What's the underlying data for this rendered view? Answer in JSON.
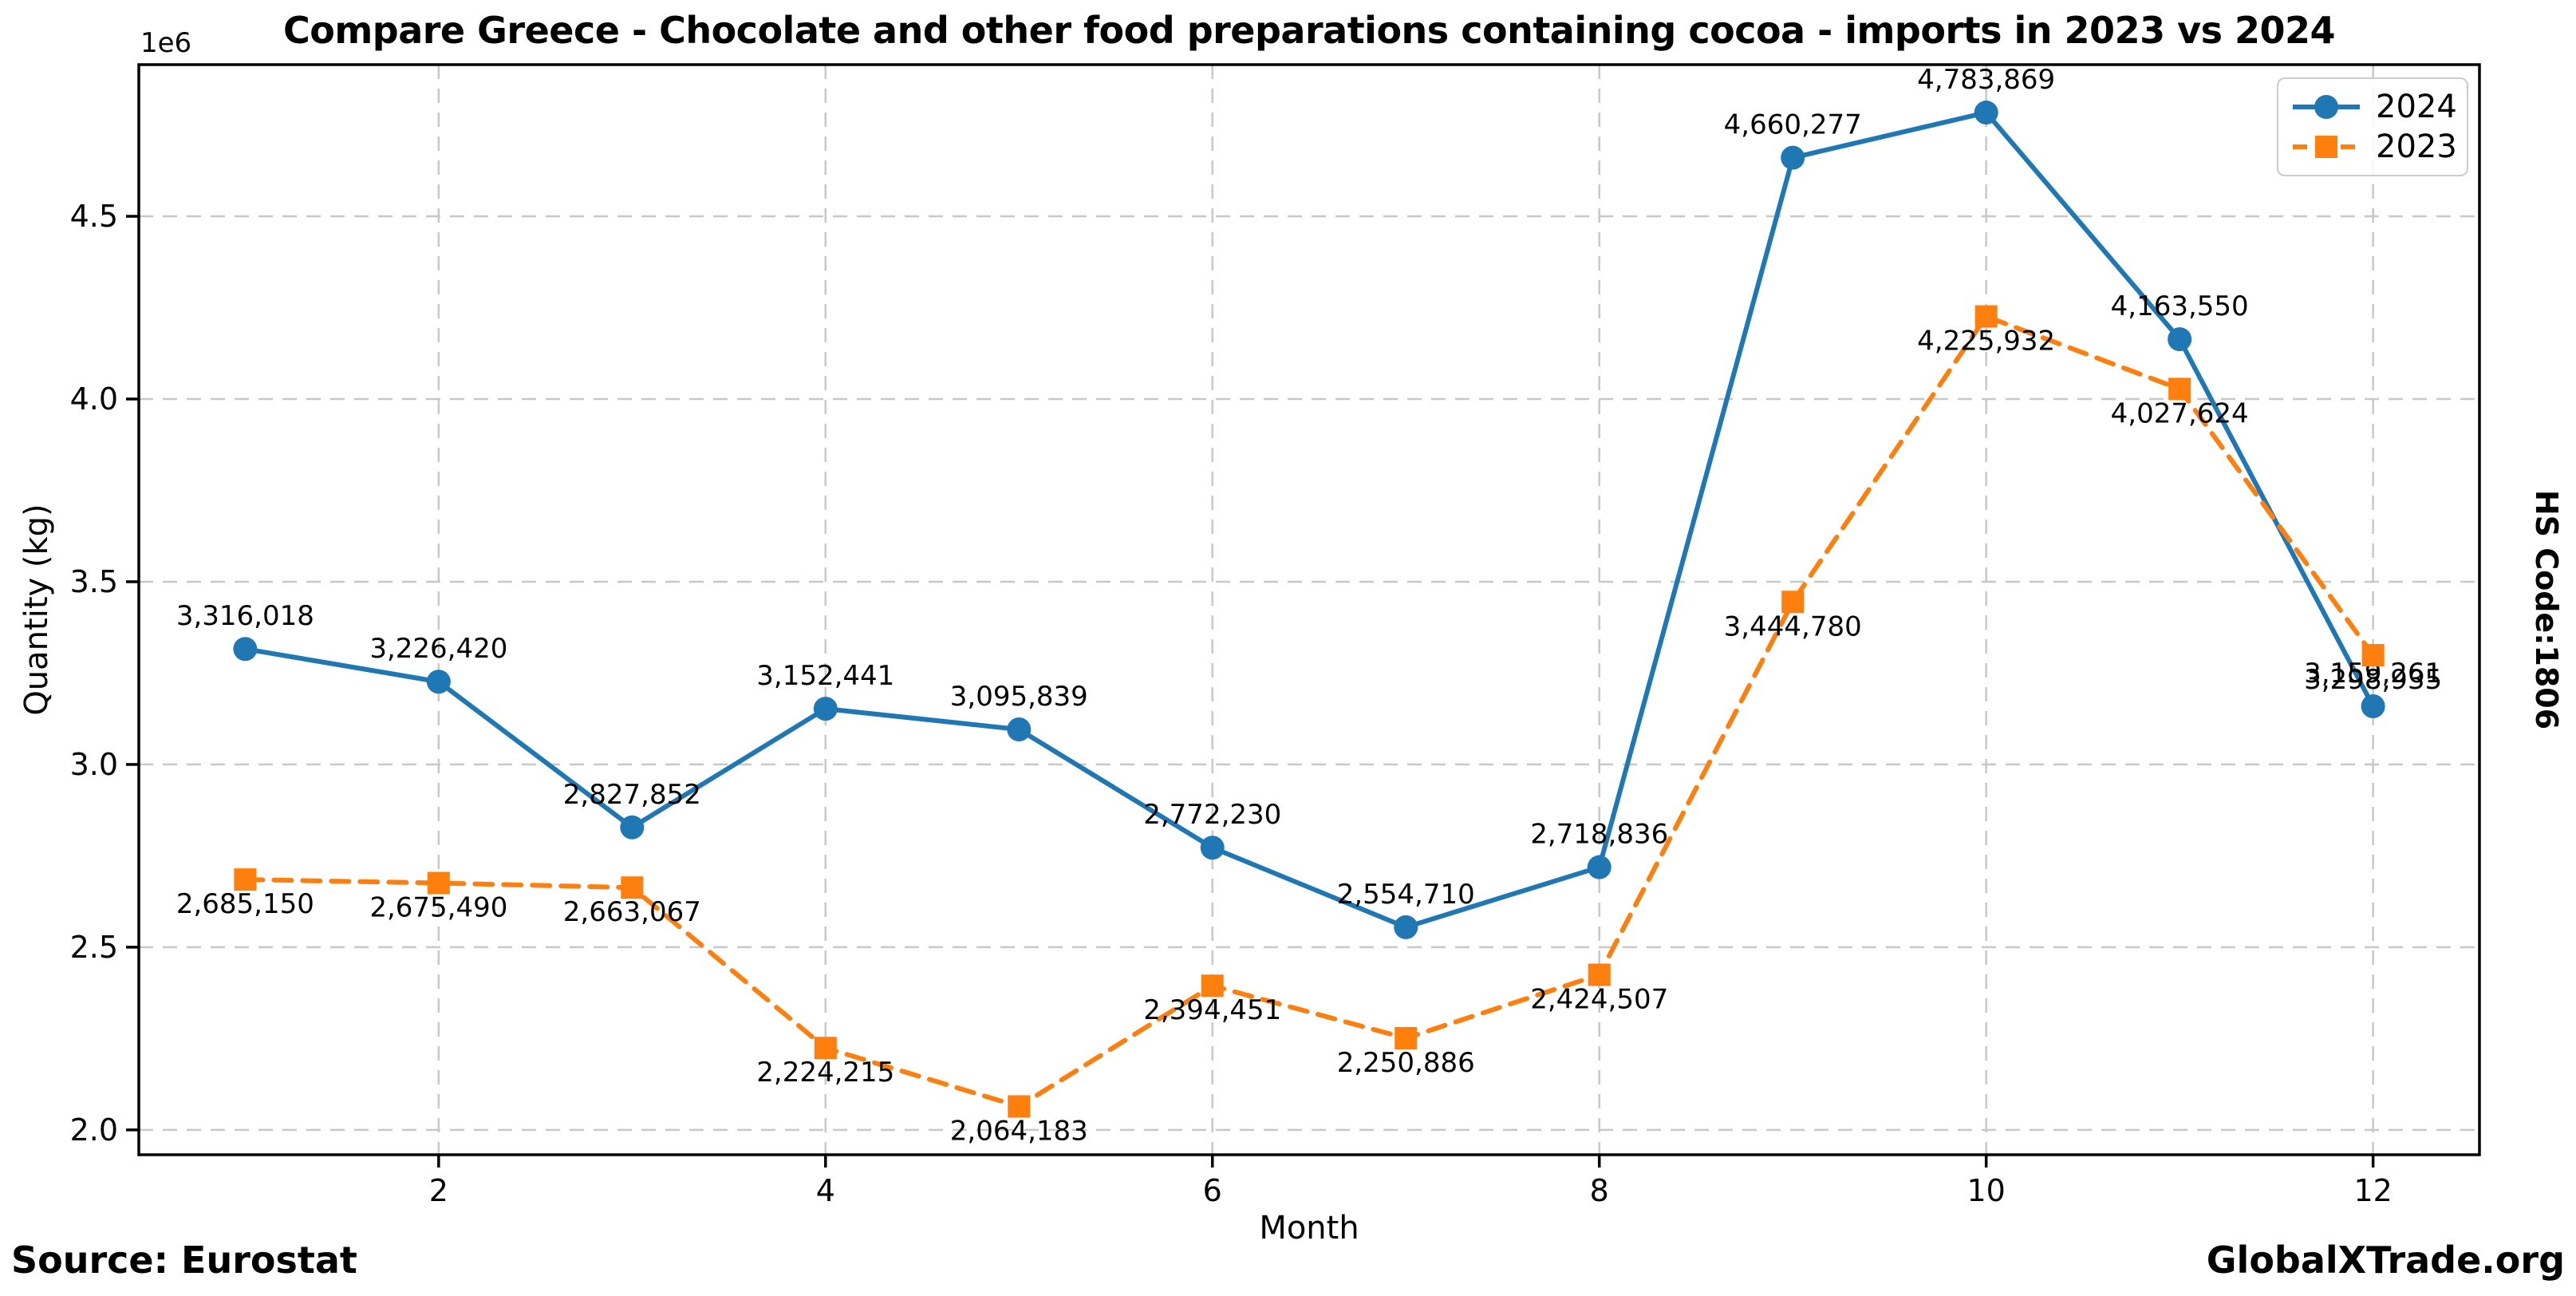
{
  "figure": {
    "title": "Compare Greece - Chocolate and other food preparations containing cocoa - imports in 2023 vs 2024",
    "source": "Source: Eurostat",
    "brand": "GlobalXTrade.org",
    "hs_code": "HS Code:1806",
    "offset_label": "1e6"
  },
  "chart_data": {
    "type": "line",
    "title": "Compare Greece - Chocolate and other food preparations containing cocoa - imports in 2023 vs 2024",
    "xlabel": "Month",
    "ylabel": "Quantity (kg)",
    "x": [
      1,
      2,
      3,
      4,
      5,
      6,
      7,
      8,
      9,
      10,
      11,
      12
    ],
    "xlim": [
      0.45,
      12.55
    ],
    "ylim": [
      1932000,
      4915000
    ],
    "x_ticks": [
      2,
      4,
      6,
      8,
      10,
      12
    ],
    "y_ticks": [
      2000000,
      2500000,
      3000000,
      3500000,
      4000000,
      4500000
    ],
    "y_tick_labels": [
      "2.0",
      "2.5",
      "3.0",
      "3.5",
      "4.0",
      "4.5"
    ],
    "y_offset_label": "1e6",
    "grid": true,
    "legend_position": "upper right",
    "series": [
      {
        "name": "2024",
        "color": "#1f77b4",
        "line_style": "solid",
        "marker": "circle",
        "values": [
          3316018,
          3226420,
          2827852,
          3152441,
          3095839,
          2772230,
          2554710,
          2718836,
          4660277,
          4783869,
          4163550,
          3159261
        ]
      },
      {
        "name": "2023",
        "color": "#ff7f0e",
        "line_style": "dashed",
        "marker": "square",
        "values": [
          2685150,
          2675490,
          2663067,
          2224215,
          2064183,
          2394451,
          2250886,
          2424507,
          3444780,
          4225932,
          4027624,
          3298935
        ]
      }
    ]
  },
  "colors": {
    "grid": "#c8c8c8",
    "spine": "#000000",
    "text": "#000000",
    "legend_border": "#cccccc"
  }
}
